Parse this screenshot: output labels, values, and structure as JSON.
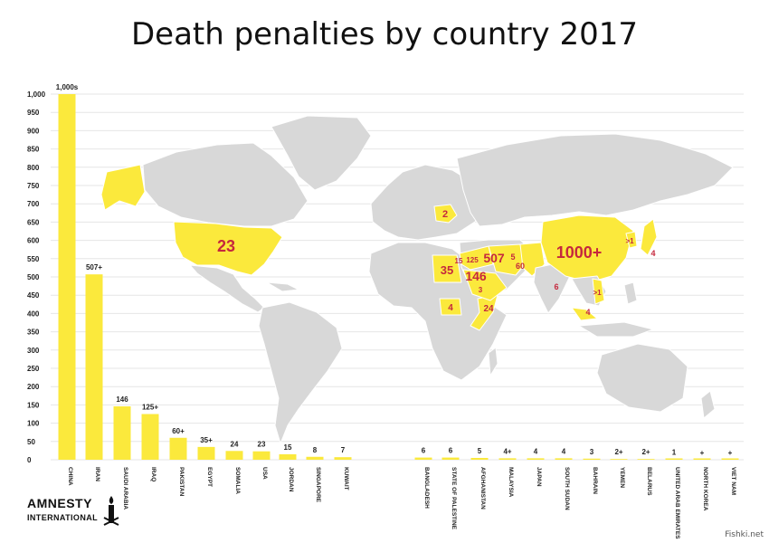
{
  "title": "Death penalties by country 2017",
  "logo": {
    "line1": "AMNESTY",
    "line2": "INTERNATIONAL"
  },
  "watermark": "Fishki.net",
  "colors": {
    "bar": "#fbe93c",
    "land": "#d8d8d8",
    "highlight": "#fbe93c",
    "map_label": "#c5283d",
    "grid": "#e6e6e6"
  },
  "chart_data": {
    "type": "bar",
    "ylim": [
      0,
      1000
    ],
    "yticks": [
      "0",
      "50",
      "100",
      "150",
      "200",
      "250",
      "300",
      "350",
      "400",
      "450",
      "500",
      "550",
      "600",
      "650",
      "700",
      "750",
      "800",
      "850",
      "900",
      "950",
      "1,000"
    ],
    "grid": true,
    "categories": [
      "CHINA",
      "IRAN",
      "SAUDI ARABIA",
      "IRAQ",
      "PAKISTAN",
      "EGYPT",
      "SOMALIA",
      "USA",
      "JORDAN",
      "SINGAPORE",
      "KUWAIT",
      "BANGLADESH",
      "STATE OF PALESTINE",
      "AFGHANISTAN",
      "MALAYSIA",
      "JAPAN",
      "SOUTH SUDAN",
      "BAHRAIN",
      "YEMEN",
      "BELARUS",
      "UNITED ARAB EMIRATES",
      "NORTH KOREA",
      "VIET NAM"
    ],
    "values": [
      1000,
      507,
      146,
      125,
      60,
      35,
      24,
      23,
      15,
      8,
      7,
      6,
      6,
      5,
      4,
      4,
      4,
      3,
      2,
      2,
      1,
      0,
      0
    ],
    "value_labels": [
      "1,000s",
      "507+",
      "146",
      "125+",
      "60+",
      "35+",
      "24",
      "23",
      "15",
      "8",
      "7",
      "6",
      "6",
      "5",
      "4+",
      "4",
      "4",
      "3",
      "2+",
      "2+",
      "1",
      "+",
      "+"
    ]
  },
  "map_labels": [
    {
      "text": "23",
      "region": "usa"
    },
    {
      "text": "2",
      "region": "belarus"
    },
    {
      "text": "35",
      "region": "egypt"
    },
    {
      "text": "15",
      "region": "jordan"
    },
    {
      "text": "125",
      "region": "iraq"
    },
    {
      "text": "507",
      "region": "iran"
    },
    {
      "text": "146",
      "region": "saudi-arabia"
    },
    {
      "text": "5",
      "region": "afghanistan"
    },
    {
      "text": "60",
      "region": "pakistan"
    },
    {
      "text": "1000+",
      "region": "china"
    },
    {
      "text": ">1",
      "region": "north-korea"
    },
    {
      "text": "4",
      "region": "japan"
    },
    {
      "text": "6",
      "region": "bangladesh"
    },
    {
      "text": ">1",
      "region": "viet-nam"
    },
    {
      "text": "4",
      "region": "malaysia"
    },
    {
      "text": "4",
      "region": "south-sudan"
    },
    {
      "text": "24",
      "region": "somalia"
    },
    {
      "text": "3",
      "region": "bahrain"
    }
  ]
}
